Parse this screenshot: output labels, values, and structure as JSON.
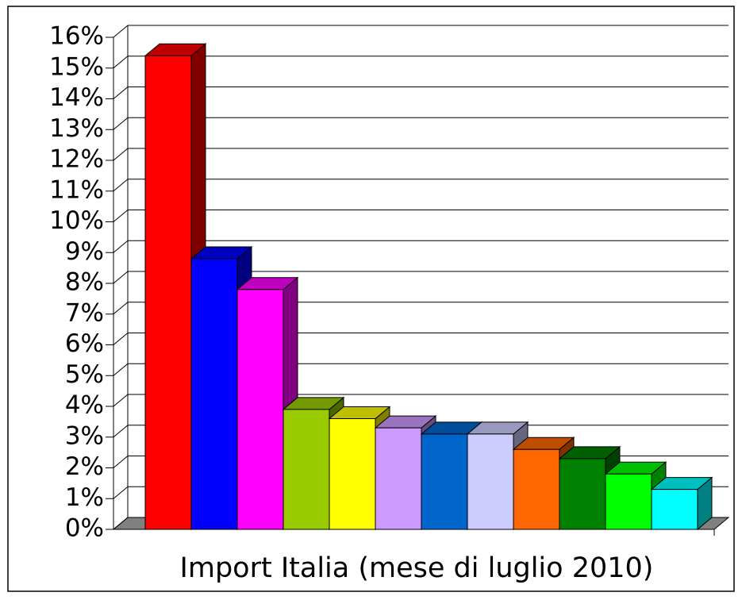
{
  "chart_data": {
    "type": "bar3d",
    "title": "Import Italia (mese di luglio 2010)",
    "values": [
      15.4,
      8.8,
      7.8,
      3.9,
      3.6,
      3.3,
      3.1,
      3.1,
      2.6,
      2.3,
      1.8,
      1.3
    ],
    "colors": [
      "#ff0000",
      "#0000ff",
      "#ff00ff",
      "#99cc00",
      "#ffff00",
      "#cc99ff",
      "#0066cc",
      "#ccccff",
      "#ff6600",
      "#008000",
      "#00ff00",
      "#00ffff"
    ],
    "ylim": [
      0,
      16
    ],
    "yticks": [
      {
        "value": 0,
        "label": "0%"
      },
      {
        "value": 1,
        "label": "1%"
      },
      {
        "value": 2,
        "label": "2%"
      },
      {
        "value": 3,
        "label": "3%"
      },
      {
        "value": 4,
        "label": "4%"
      },
      {
        "value": 5,
        "label": "5%"
      },
      {
        "value": 6,
        "label": "6%"
      },
      {
        "value": 7,
        "label": "7%"
      },
      {
        "value": 8,
        "label": "8%"
      },
      {
        "value": 9,
        "label": "9%"
      },
      {
        "value": 10,
        "label": "10%"
      },
      {
        "value": 11,
        "label": "11%"
      },
      {
        "value": 12,
        "label": "12%"
      },
      {
        "value": 13,
        "label": "13%"
      },
      {
        "value": 14,
        "label": "14%"
      },
      {
        "value": 15,
        "label": "15%"
      },
      {
        "value": 16,
        "label": "16%"
      }
    ],
    "grid": true
  }
}
